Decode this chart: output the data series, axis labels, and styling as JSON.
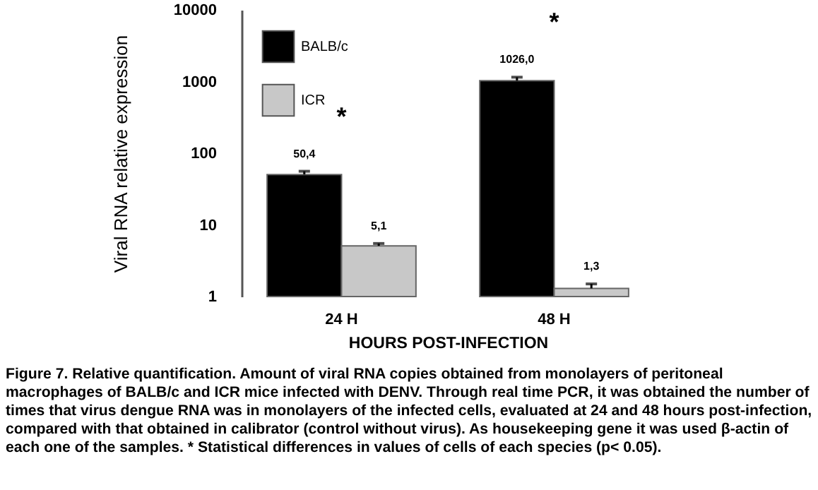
{
  "chart_data": {
    "type": "bar",
    "xlabel": "HOURS POST-INFECTION",
    "ylabel": "Viral RNA relative expression",
    "categories": [
      "24 H",
      "48 H"
    ],
    "series": [
      {
        "name": "BALB/c",
        "color": "#000000",
        "values": [
          50.4,
          1026.0
        ],
        "value_labels": [
          "50,4",
          "1026,0"
        ],
        "errors": [
          [
            50.4,
            56
          ],
          [
            1026.0,
            1150
          ]
        ]
      },
      {
        "name": "ICR",
        "color": "#c8c8c8",
        "values": [
          5.1,
          1.3
        ],
        "value_labels": [
          "5,1",
          "1,3"
        ],
        "errors": [
          [
            5.1,
            5.5
          ],
          [
            1.3,
            1.5
          ]
        ]
      }
    ],
    "log": "y",
    "ylim": [
      1,
      10000
    ],
    "yticks": [
      1,
      10,
      100,
      1000,
      10000
    ],
    "legend": "top left",
    "annotations": [
      "*",
      "*",
      "Figure 7. Relative quantification. Amount of viral RNA copies obtained from monolayers of peritoneal macrophages of BALB/c and ICR mice infected with DENV. Through real time PCR, it was obtained the number of times that virus dengue RNA was in monolayers of the infected cells, evaluated at 24 and 48 hours post-infection, compared with that obtained in calibrator (control without virus). As housekeeping gene it was used β-actin of each one of the samples. * Statistical differences in values of cells of each species (p< 0.05)."
    ]
  }
}
